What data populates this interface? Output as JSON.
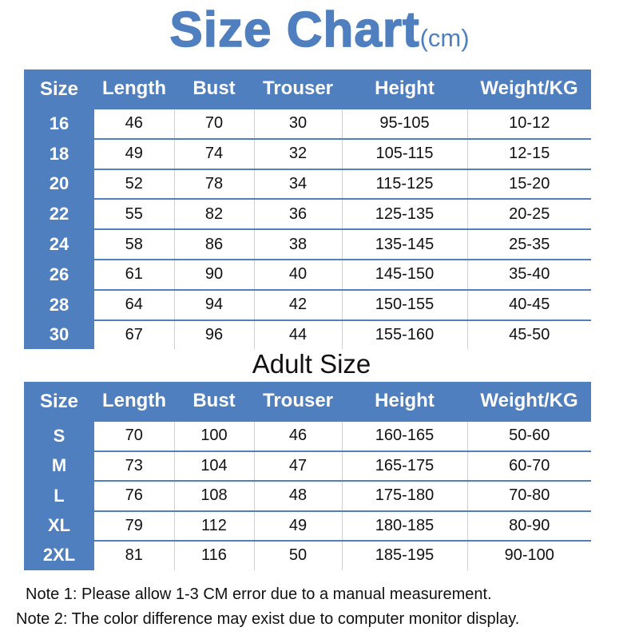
{
  "title": {
    "main": "Size Chart",
    "unit": "(cm)"
  },
  "colors": {
    "accent": "#4f7fbf"
  },
  "headers": [
    "Size",
    "Length",
    "Bust",
    "Trouser",
    "Height",
    "Weight/KG"
  ],
  "kids_rows": [
    [
      "16",
      "46",
      "70",
      "30",
      "95-105",
      "10-12"
    ],
    [
      "18",
      "49",
      "74",
      "32",
      "105-115",
      "12-15"
    ],
    [
      "20",
      "52",
      "78",
      "34",
      "115-125",
      "15-20"
    ],
    [
      "22",
      "55",
      "82",
      "36",
      "125-135",
      "20-25"
    ],
    [
      "24",
      "58",
      "86",
      "38",
      "135-145",
      "25-35"
    ],
    [
      "26",
      "61",
      "90",
      "40",
      "145-150",
      "35-40"
    ],
    [
      "28",
      "64",
      "94",
      "42",
      "150-155",
      "40-45"
    ],
    [
      "30",
      "67",
      "96",
      "44",
      "155-160",
      "45-50"
    ]
  ],
  "adult_label": "Adult Size",
  "adult_rows": [
    [
      "S",
      "70",
      "100",
      "46",
      "160-165",
      "50-60"
    ],
    [
      "M",
      "73",
      "104",
      "47",
      "165-175",
      "60-70"
    ],
    [
      "L",
      "76",
      "108",
      "48",
      "175-180",
      "70-80"
    ],
    [
      "XL",
      "79",
      "112",
      "49",
      "180-185",
      "80-90"
    ],
    [
      "2XL",
      "81",
      "116",
      "50",
      "185-195",
      "90-100"
    ]
  ],
  "notes": [
    "Note 1: Please allow 1-3 CM error due to a manual measurement.",
    "Note 2: The color difference may exist due to computer monitor display."
  ]
}
